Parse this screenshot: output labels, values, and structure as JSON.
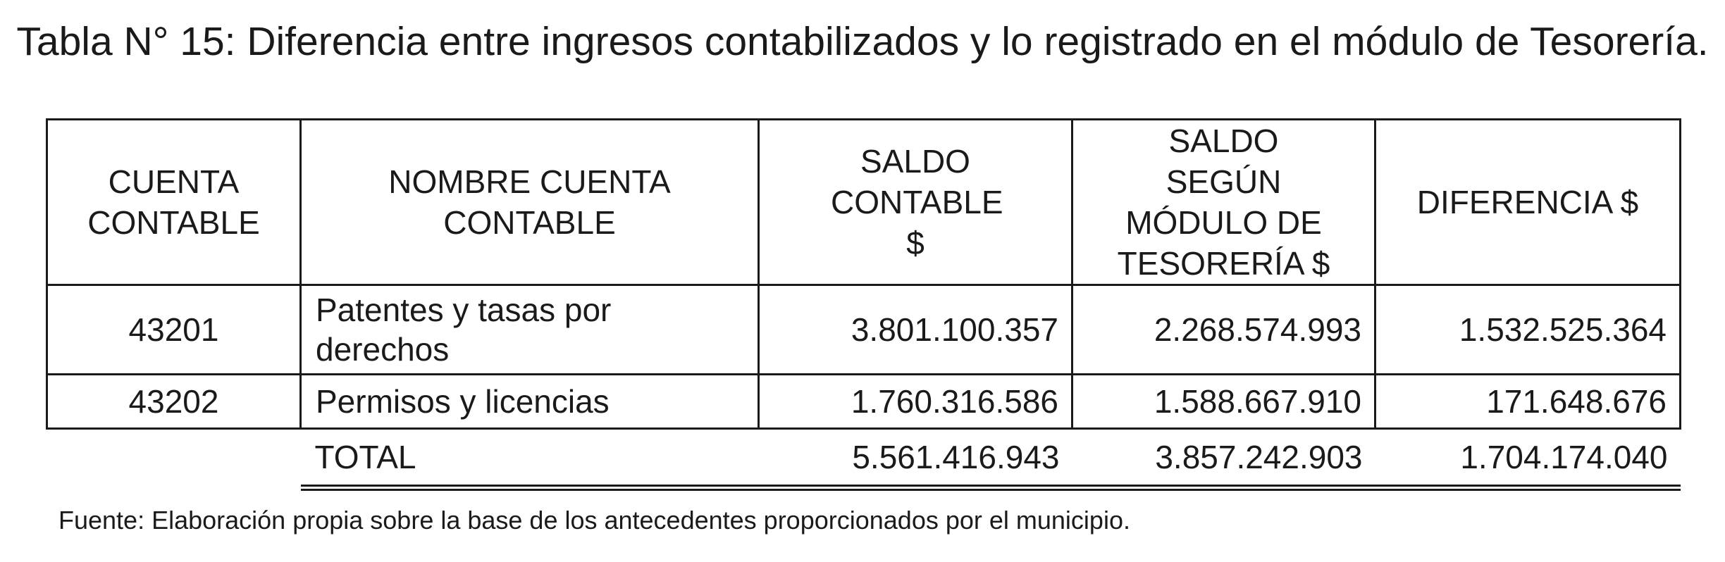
{
  "document": {
    "title": "Tabla N° 15: Diferencia entre ingresos contabilizados y lo registrado en el módulo de Tesorería.",
    "source": "Fuente: Elaboración propia sobre la base de los antecedentes proporcionados por el municipio."
  },
  "table": {
    "headers": [
      "CUENTA CONTABLE",
      "NOMBRE CUENTA CONTABLE",
      "SALDO CONTABLE $",
      "SALDO SEGÚN MÓDULO DE TESORERÍA $",
      "DIFERENCIA $"
    ],
    "rows": [
      {
        "code": "43201",
        "name": "Patentes y tasas por derechos",
        "saldo_contable": "3.801.100.357",
        "saldo_tesoreria": "2.268.574.993",
        "diferencia": "1.532.525.364"
      },
      {
        "code": "43202",
        "name": "Permisos y licencias",
        "saldo_contable": "1.760.316.586",
        "saldo_tesoreria": "1.588.667.910",
        "diferencia": "171.648.676"
      }
    ],
    "total": {
      "label": "TOTAL",
      "saldo_contable": "5.561.416.943",
      "saldo_tesoreria": "3.857.242.903",
      "diferencia": "1.704.174.040"
    }
  }
}
